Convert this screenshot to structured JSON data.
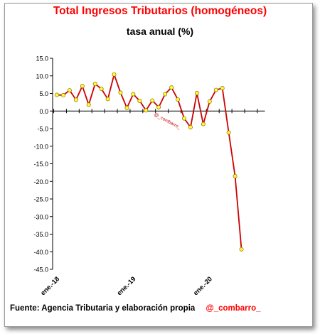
{
  "chart_data": {
    "type": "line",
    "title": "Total Ingresos Tributarios (homogéneos)",
    "subtitle": "tasa anual (%)",
    "xlabel": "",
    "ylabel": "",
    "ylim": [
      -45,
      15
    ],
    "yticks": [
      "15.0",
      "10.0",
      "5.0",
      "0.0",
      "-5.0",
      "-10.0",
      "-15.0",
      "-20.0",
      "-25.0",
      "-30.0",
      "-35.0",
      "-40.0",
      "-45.0"
    ],
    "ytick_values": [
      15,
      10,
      5,
      0,
      -5,
      -10,
      -15,
      -20,
      -25,
      -30,
      -35,
      -40,
      -45
    ],
    "xtick_labels": [
      "ene.-18",
      "ene.-19",
      "ene.-20"
    ],
    "xtick_indices": [
      0,
      12,
      24
    ],
    "series": [
      {
        "values": [
          4.6,
          4.5,
          5.9,
          3.2,
          7.1,
          1.8,
          7.7,
          6.3,
          3.4,
          10.4,
          5.2,
          0.9,
          4.8,
          2.9,
          0.2,
          3.0,
          1.1,
          4.8,
          6.7,
          3.3,
          -2.1,
          -4.6,
          5.1,
          -3.7,
          2.7,
          6.0,
          6.5,
          -6.1,
          -18.5,
          -39.3
        ]
      }
    ],
    "grid": false,
    "line_color": "#cc0000",
    "marker_color": "#ffff33",
    "watermark": "@_combarro_"
  },
  "footer": {
    "source": "Fuente: Agencia Tributaria y elaboración propia",
    "handle": "@_combarro_"
  }
}
